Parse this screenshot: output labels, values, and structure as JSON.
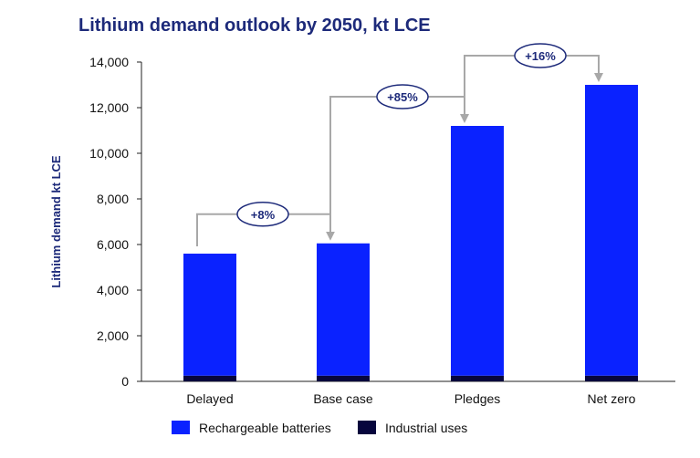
{
  "chart_data": {
    "type": "bar",
    "title": "Lithium demand outlook by 2050, kt LCE",
    "ylabel": "Lithium demand kt LCE",
    "xlabel": "",
    "categories": [
      "Delayed",
      "Base case",
      "Pledges",
      "Net zero"
    ],
    "series": [
      {
        "name": "Rechargeable batteries",
        "color": "#0a22ff",
        "values": [
          5350,
          5800,
          10950,
          12750
        ]
      },
      {
        "name": "Industrial uses",
        "color": "#07063d",
        "values": [
          250,
          250,
          250,
          250
        ]
      }
    ],
    "stacked": true,
    "ylim": [
      0,
      14000
    ],
    "yticks": [
      "0",
      "2,000",
      "4,000",
      "6,000",
      "8,000",
      "10,000",
      "12,000",
      "14,000"
    ],
    "grid": false,
    "legend_position": "bottom",
    "annotations": [
      {
        "from": "Delayed",
        "to": "Base case",
        "label": "+8%"
      },
      {
        "from": "Base case",
        "to": "Pledges",
        "label": "+85%"
      },
      {
        "from": "Pledges",
        "to": "Net zero",
        "label": "+16%"
      }
    ]
  }
}
